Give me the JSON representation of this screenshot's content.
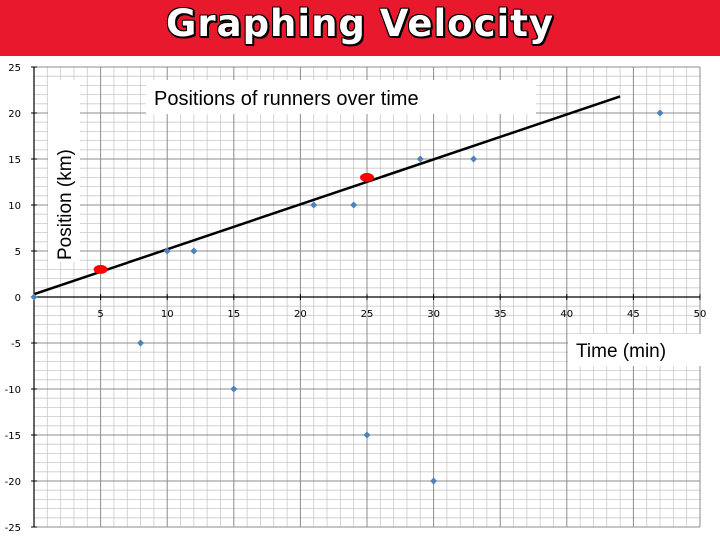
{
  "slide": {
    "title": "Graphing Velocity",
    "banner_color": "#e8192c"
  },
  "chart_data": {
    "type": "scatter",
    "title": "Positions of runners over time",
    "xlabel": "Time (min)",
    "ylabel": "Position (km)",
    "xlim": [
      0,
      50
    ],
    "ylim": [
      -25,
      25
    ],
    "x_ticks": [
      5,
      10,
      15,
      20,
      25,
      30,
      35,
      40,
      45,
      50
    ],
    "y_ticks": [
      25,
      20,
      15,
      10,
      5,
      0,
      -5,
      -10,
      -15,
      -20,
      -25
    ],
    "grid": true,
    "marker_color": "#4f81bd",
    "highlight_color": "#ff0000",
    "points": [
      {
        "x": 0,
        "y": 0
      },
      {
        "x": 5,
        "y": 3
      },
      {
        "x": 8,
        "y": -5
      },
      {
        "x": 10,
        "y": 5
      },
      {
        "x": 12,
        "y": 5
      },
      {
        "x": 15,
        "y": -10
      },
      {
        "x": 21,
        "y": 10
      },
      {
        "x": 24,
        "y": 10
      },
      {
        "x": 25,
        "y": 13
      },
      {
        "x": 25,
        "y": -15
      },
      {
        "x": 29,
        "y": 15
      },
      {
        "x": 30,
        "y": -20
      },
      {
        "x": 33,
        "y": 15
      },
      {
        "x": 47,
        "y": 20
      }
    ],
    "highlighted_points": [
      {
        "x": 5,
        "y": 3
      },
      {
        "x": 25,
        "y": 13
      }
    ],
    "trend_line": {
      "x": [
        0,
        44
      ],
      "y": [
        0.3,
        21.8
      ]
    }
  }
}
